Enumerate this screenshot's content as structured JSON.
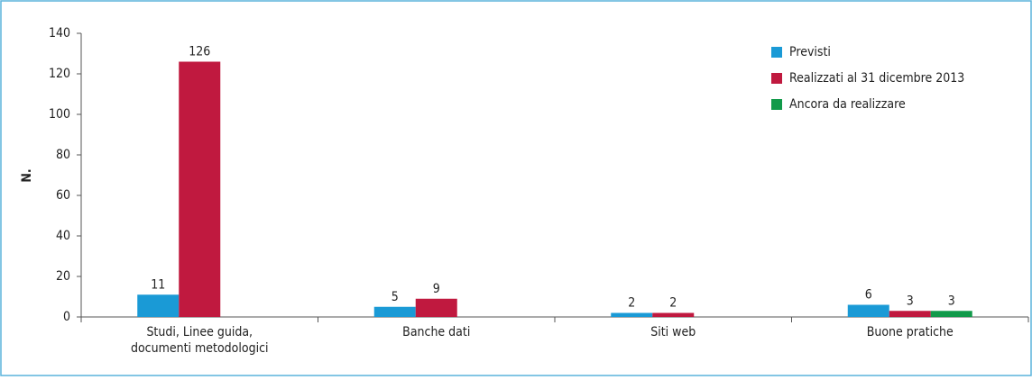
{
  "chart_data": {
    "type": "bar",
    "y_label": "N.",
    "categories": [
      "Studi, Linee guida, documenti metodologici",
      "Banche dati",
      "Siti web",
      "Buone pratiche"
    ],
    "series": [
      {
        "name": "Previsti",
        "color": "#1a9ad6",
        "values": [
          11,
          5,
          2,
          6
        ]
      },
      {
        "name": "Realizzati al 31 dicembre 2013",
        "color": "#c0193f",
        "values": [
          126,
          9,
          2,
          3
        ]
      },
      {
        "name": "Ancora da realizzare",
        "color": "#119a4a",
        "values": [
          null,
          null,
          null,
          3
        ]
      }
    ],
    "ylim": [
      0,
      140
    ],
    "yticks": [
      0,
      20,
      40,
      60,
      80,
      100,
      120,
      140
    ],
    "legend": "upper right"
  }
}
